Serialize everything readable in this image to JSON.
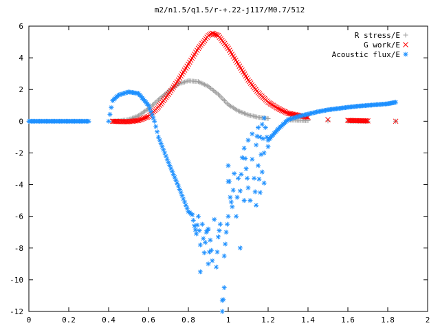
{
  "chart_data": {
    "type": "scatter",
    "title": "m2/n1.5/q1.5/r-+.22-j117/M0.7/512",
    "xlabel": "",
    "ylabel": "",
    "xlim": [
      0,
      2
    ],
    "ylim": [
      -12,
      6
    ],
    "x_ticks": [
      "0",
      "0.2",
      "0.4",
      "0.6",
      "0.8",
      "1",
      "1.2",
      "1.4",
      "1.6",
      "1.8",
      "2"
    ],
    "y_ticks": [
      "6",
      "4",
      "2",
      "0",
      "-2",
      "-4",
      "-6",
      "-8",
      "-10",
      "-12"
    ],
    "grid": false,
    "legend_position": "top-right",
    "series": [
      {
        "name": "R stress/E",
        "marker": "+",
        "color": "#a0a0a0",
        "points": [
          [
            0.42,
            0.0
          ],
          [
            0.45,
            0.02
          ],
          [
            0.5,
            0.1
          ],
          [
            0.55,
            0.35
          ],
          [
            0.6,
            0.8
          ],
          [
            0.65,
            1.35
          ],
          [
            0.7,
            1.9
          ],
          [
            0.75,
            2.35
          ],
          [
            0.8,
            2.55
          ],
          [
            0.85,
            2.5
          ],
          [
            0.9,
            2.2
          ],
          [
            0.95,
            1.7
          ],
          [
            1.0,
            1.05
          ],
          [
            1.05,
            0.65
          ],
          [
            1.1,
            0.4
          ],
          [
            1.15,
            0.25
          ],
          [
            1.2,
            0.17
          ],
          [
            1.3,
            0.08
          ],
          [
            1.4,
            0.04
          ],
          [
            1.5,
            0.02
          ],
          [
            1.6,
            0.01
          ],
          [
            1.7,
            0.0
          ],
          [
            1.84,
            0.0
          ]
        ]
      },
      {
        "name": "G work/E",
        "marker": "x",
        "color": "#ff0000",
        "points": [
          [
            0.42,
            0.0
          ],
          [
            0.45,
            -0.02
          ],
          [
            0.5,
            -0.03
          ],
          [
            0.55,
            0.05
          ],
          [
            0.6,
            0.3
          ],
          [
            0.65,
            0.9
          ],
          [
            0.7,
            1.7
          ],
          [
            0.75,
            2.6
          ],
          [
            0.8,
            3.6
          ],
          [
            0.85,
            4.6
          ],
          [
            0.9,
            5.4
          ],
          [
            0.92,
            5.55
          ],
          [
            0.95,
            5.4
          ],
          [
            1.0,
            4.6
          ],
          [
            1.05,
            3.6
          ],
          [
            1.1,
            2.6
          ],
          [
            1.15,
            1.8
          ],
          [
            1.2,
            1.2
          ],
          [
            1.25,
            0.8
          ],
          [
            1.3,
            0.5
          ],
          [
            1.4,
            0.25
          ],
          [
            1.5,
            0.1
          ],
          [
            1.6,
            0.05
          ],
          [
            1.7,
            0.02
          ],
          [
            1.84,
            0.0
          ]
        ]
      },
      {
        "name": "Acoustic flux/E",
        "marker": "*",
        "color": "#1e90ff",
        "points": [
          [
            0.0,
            0.0
          ],
          [
            0.1,
            0.0
          ],
          [
            0.2,
            0.0
          ],
          [
            0.3,
            0.0
          ],
          [
            0.4,
            0.0
          ],
          [
            0.42,
            1.3
          ],
          [
            0.45,
            1.65
          ],
          [
            0.5,
            1.85
          ],
          [
            0.55,
            1.75
          ],
          [
            0.6,
            1.0
          ],
          [
            0.63,
            0.0
          ],
          [
            0.65,
            -1.0
          ],
          [
            0.7,
            -2.6
          ],
          [
            0.75,
            -4.1
          ],
          [
            0.8,
            -5.7
          ],
          [
            0.82,
            -5.9
          ],
          [
            0.83,
            -6.6
          ],
          [
            0.84,
            -7.1
          ],
          [
            0.85,
            -6.0
          ],
          [
            0.86,
            -7.8
          ],
          [
            0.86,
            -9.5
          ],
          [
            0.87,
            -6.5
          ],
          [
            0.88,
            -8.3
          ],
          [
            0.89,
            -7.0
          ],
          [
            0.9,
            -6.8
          ],
          [
            0.9,
            -9.0
          ],
          [
            0.91,
            -7.5
          ],
          [
            0.92,
            -8.8
          ],
          [
            0.93,
            -6.2
          ],
          [
            0.94,
            -9.2
          ],
          [
            0.95,
            -7.3
          ],
          [
            0.96,
            -6.5
          ],
          [
            0.97,
            -11.3
          ],
          [
            0.97,
            -12.0
          ],
          [
            0.98,
            -10.5
          ],
          [
            0.98,
            -8.5
          ],
          [
            0.99,
            -7.0
          ],
          [
            1.0,
            -6.0
          ],
          [
            1.0,
            -3.8
          ],
          [
            1.0,
            -2.8
          ],
          [
            1.01,
            -4.8
          ],
          [
            1.02,
            -5.4
          ],
          [
            1.03,
            -3.3
          ],
          [
            1.04,
            -6.0
          ],
          [
            1.05,
            -3.6
          ],
          [
            1.06,
            -8.0
          ],
          [
            1.06,
            -4.4
          ],
          [
            1.07,
            -2.3
          ],
          [
            1.08,
            -5.0
          ],
          [
            1.08,
            -1.7
          ],
          [
            1.09,
            -3.0
          ],
          [
            1.1,
            -4.2
          ],
          [
            1.1,
            -1.2
          ],
          [
            1.11,
            -5.0
          ],
          [
            1.12,
            -2.4
          ],
          [
            1.12,
            -0.8
          ],
          [
            1.13,
            -3.6
          ],
          [
            1.14,
            -5.3
          ],
          [
            1.14,
            -1.5
          ],
          [
            1.15,
            -0.4
          ],
          [
            1.15,
            -2.8
          ],
          [
            1.16,
            -4.5
          ],
          [
            1.16,
            -1.0
          ],
          [
            1.17,
            -3.2
          ],
          [
            1.17,
            -0.2
          ],
          [
            1.18,
            -2.0
          ],
          [
            1.18,
            -3.9
          ],
          [
            1.18,
            0.2
          ],
          [
            1.2,
            -1.6
          ],
          [
            1.2,
            -1.2
          ],
          [
            1.25,
            -0.5
          ],
          [
            1.3,
            0.1
          ],
          [
            1.35,
            0.3
          ],
          [
            1.4,
            0.45
          ],
          [
            1.45,
            0.6
          ],
          [
            1.5,
            0.72
          ],
          [
            1.55,
            0.8
          ],
          [
            1.6,
            0.88
          ],
          [
            1.65,
            0.95
          ],
          [
            1.7,
            1.0
          ],
          [
            1.75,
            1.05
          ],
          [
            1.8,
            1.1
          ],
          [
            1.84,
            1.2
          ]
        ]
      }
    ]
  }
}
